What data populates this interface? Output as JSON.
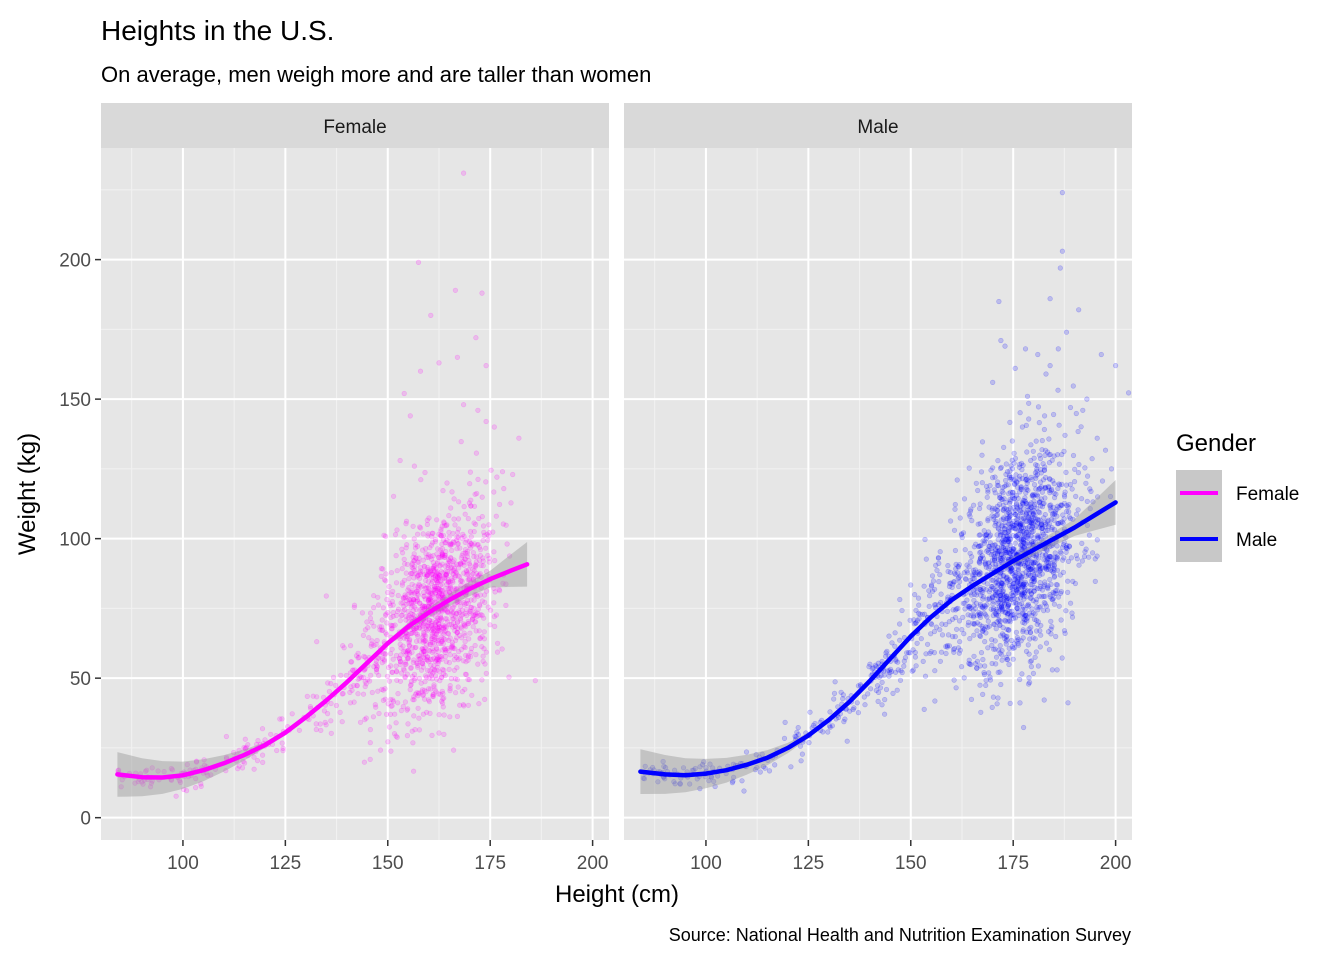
{
  "chart_data": {
    "type": "scatter",
    "title": "Heights in the U.S.",
    "subtitle": "On average, men weigh more and are taller than women",
    "xlabel": "Height (cm)",
    "ylabel": "Weight (kg)",
    "caption": "Source: National Health and Nutrition Examination Survey",
    "xlim": [
      80,
      204
    ],
    "ylim": [
      -8,
      240
    ],
    "x_ticks": [
      100,
      125,
      150,
      175,
      200
    ],
    "y_ticks": [
      0,
      50,
      100,
      150,
      200
    ],
    "grid": true,
    "legend": {
      "title": "Gender",
      "position": "right",
      "items": [
        {
          "label": "Female",
          "color": "#ff00ff"
        },
        {
          "label": "Male",
          "color": "#0000ff"
        }
      ]
    },
    "facets": [
      {
        "label": "Female",
        "color": "#ff00ff",
        "smooth": [
          [
            84,
            15.5
          ],
          [
            90,
            14.5
          ],
          [
            95,
            14.4
          ],
          [
            100,
            15.2
          ],
          [
            105,
            17
          ],
          [
            110,
            19.5
          ],
          [
            115,
            22.5
          ],
          [
            120,
            26
          ],
          [
            125,
            30.5
          ],
          [
            130,
            36
          ],
          [
            135,
            42
          ],
          [
            140,
            48.5
          ],
          [
            145,
            55.5
          ],
          [
            150,
            62.5
          ],
          [
            155,
            68.5
          ],
          [
            160,
            73.5
          ],
          [
            165,
            78
          ],
          [
            170,
            82
          ],
          [
            175,
            85.5
          ],
          [
            180,
            88.5
          ],
          [
            184,
            90.8
          ]
        ],
        "band": [
          [
            84,
            8
          ],
          [
            120,
            1
          ],
          [
            150,
            1
          ],
          [
            175,
            3
          ],
          [
            184,
            8
          ]
        ],
        "clusters": [
          {
            "name": "low",
            "n": 120,
            "x": [
              84,
              130
            ],
            "tight": true
          },
          {
            "name": "mid",
            "n": 110,
            "x": [
              130,
              150
            ],
            "tight": true
          },
          {
            "name": "main",
            "n": 1300,
            "x_mean": 162,
            "x_sd": 7,
            "y_sd": 17
          }
        ],
        "outliers": [
          [
            168.5,
            231
          ],
          [
            157.5,
            199
          ],
          [
            166.5,
            189
          ],
          [
            173,
            188
          ],
          [
            160.5,
            180
          ],
          [
            171.5,
            172
          ],
          [
            167,
            165
          ],
          [
            162.5,
            163
          ],
          [
            158,
            160
          ],
          [
            174,
            162
          ],
          [
            154,
            152
          ],
          [
            155.5,
            144
          ],
          [
            168.5,
            148
          ],
          [
            172,
            146
          ],
          [
            174,
            142
          ],
          [
            176,
            140
          ],
          [
            182,
            136
          ],
          [
            153,
            128
          ],
          [
            156.5,
            126
          ],
          [
            178,
            124
          ],
          [
            180.5,
            123
          ]
        ]
      },
      {
        "label": "Male",
        "color": "#0000ff",
        "smooth": [
          [
            84,
            16.5
          ],
          [
            90,
            15.5
          ],
          [
            95,
            15.2
          ],
          [
            100,
            15.8
          ],
          [
            105,
            17
          ],
          [
            110,
            19
          ],
          [
            115,
            21.5
          ],
          [
            120,
            25
          ],
          [
            125,
            29.5
          ],
          [
            130,
            35
          ],
          [
            135,
            41.5
          ],
          [
            140,
            49
          ],
          [
            145,
            57
          ],
          [
            150,
            65
          ],
          [
            155,
            72
          ],
          [
            160,
            78
          ],
          [
            165,
            83
          ],
          [
            170,
            87.5
          ],
          [
            175,
            92
          ],
          [
            180,
            96
          ],
          [
            185,
            100
          ],
          [
            190,
            104
          ],
          [
            195,
            108.5
          ],
          [
            200,
            113
          ]
        ],
        "band": [
          [
            84,
            8
          ],
          [
            125,
            1
          ],
          [
            170,
            1
          ],
          [
            190,
            3
          ],
          [
            200,
            8
          ]
        ],
        "clusters": [
          {
            "name": "low",
            "n": 160,
            "x": [
              84,
              140
            ],
            "tight": true
          },
          {
            "name": "mid",
            "n": 170,
            "x": [
              140,
              162
            ],
            "tight": true
          },
          {
            "name": "main",
            "n": 1500,
            "x_mean": 176,
            "x_sd": 7.5,
            "y_sd": 18
          }
        ],
        "outliers": [
          [
            187,
            224
          ],
          [
            187,
            203
          ],
          [
            186.5,
            197
          ],
          [
            184,
            186
          ],
          [
            171.5,
            185
          ],
          [
            191,
            182
          ],
          [
            188,
            174
          ],
          [
            172,
            171
          ],
          [
            173,
            169
          ],
          [
            178,
            168
          ],
          [
            186,
            168
          ],
          [
            196.5,
            166
          ],
          [
            200,
            162
          ],
          [
            175.5,
            161
          ],
          [
            181,
            166
          ],
          [
            184,
            162
          ],
          [
            183,
            159
          ],
          [
            170,
            156
          ],
          [
            178.5,
            151
          ],
          [
            193,
            150
          ],
          [
            189,
            147
          ],
          [
            192,
            146
          ],
          [
            195.5,
            136
          ],
          [
            199,
            125
          ]
        ]
      }
    ]
  }
}
